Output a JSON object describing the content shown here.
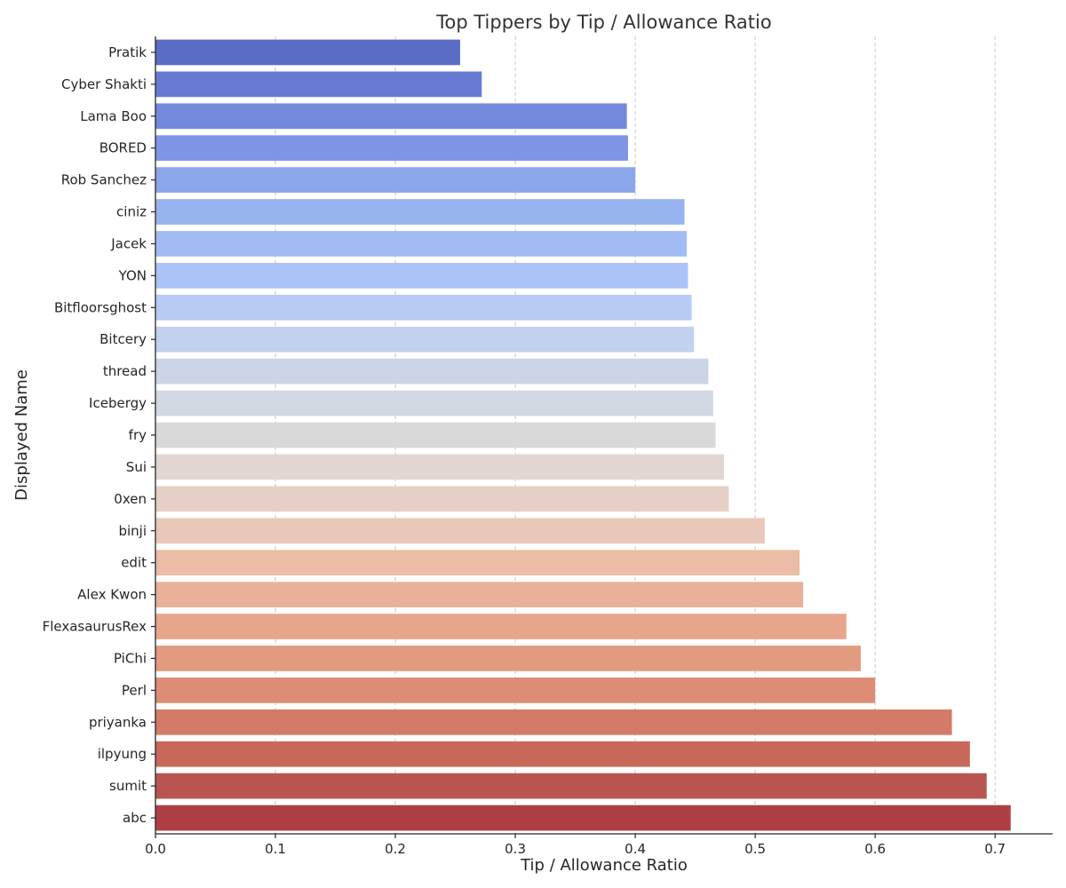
{
  "chart_data": {
    "type": "bar",
    "orientation": "horizontal",
    "title": "Top Tippers by Tip / Allowance Ratio",
    "xlabel": "Tip / Allowance Ratio",
    "ylabel": "Displayed Name",
    "xlim": [
      0,
      0.748
    ],
    "xticks": [
      0.0,
      0.1,
      0.2,
      0.3,
      0.4,
      0.5,
      0.6,
      0.7
    ],
    "xtick_labels": [
      "0.0",
      "0.1",
      "0.2",
      "0.3",
      "0.4",
      "0.5",
      "0.6",
      "0.7"
    ],
    "grid": "x, dashed",
    "legend": "none",
    "colormap": "coolwarm",
    "categories": [
      "Pratik",
      "Cyber Shakti",
      "Lama Boo",
      "BORED",
      "Rob Sanchez",
      "ciniz ",
      "Jacek",
      "YON",
      "Bitfloorsghost",
      "Bitcery",
      "thread",
      "Icebergy",
      "fry",
      "Sui",
      "0xen",
      "binji",
      "edit",
      "Alex Kwon",
      "FlexasaurusRex",
      "PiChi",
      "Perl",
      "priyanka",
      "ilpyung",
      "sumit",
      "abc"
    ],
    "values": [
      0.254,
      0.272,
      0.393,
      0.394,
      0.4,
      0.441,
      0.443,
      0.444,
      0.447,
      0.449,
      0.461,
      0.465,
      0.467,
      0.474,
      0.478,
      0.508,
      0.537,
      0.54,
      0.576,
      0.588,
      0.6,
      0.664,
      0.679,
      0.693,
      0.713
    ],
    "colors": [
      "#5a6cc4",
      "#6679d3",
      "#7389dc",
      "#7f96e6",
      "#8ba6ea",
      "#97b3f0",
      "#a2bcf3",
      "#abc3f6",
      "#b7cbf5",
      "#c2d1ee",
      "#cbd5e7",
      "#d3d9e2",
      "#d9d9d9",
      "#e2d6d3",
      "#e6d0c5",
      "#eac8b9",
      "#ebbda6",
      "#e9b199",
      "#e7a68c",
      "#e39b80",
      "#dd8c76",
      "#d47a68",
      "#c8685b",
      "#b95550",
      "#ae4043"
    ]
  }
}
